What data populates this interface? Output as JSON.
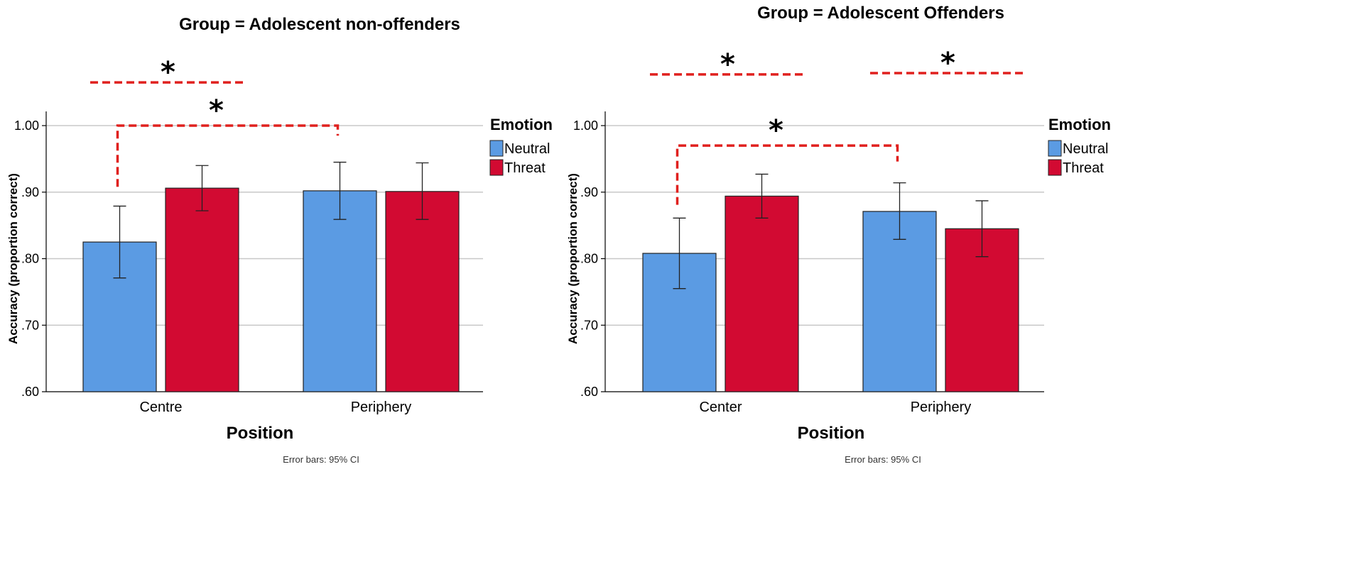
{
  "chart_data": [
    {
      "type": "bar",
      "title": "Group = Adolescent non-offenders",
      "xlabel": "Position",
      "ylabel": "Accuracy (proportion correct)",
      "ylim": [
        0.6,
        1.0
      ],
      "yticks": [
        0.6,
        0.7,
        0.8,
        0.9,
        1.0
      ],
      "ytick_labels": [
        ".60",
        ".70",
        ".80",
        ".90",
        "1.00"
      ],
      "categories": [
        "Centre",
        "Periphery"
      ],
      "series": [
        {
          "name": "Neutral",
          "color": "#5b9be3",
          "values": [
            0.825,
            0.902
          ],
          "ci_low": [
            0.771,
            0.859
          ],
          "ci_high": [
            0.879,
            0.945
          ]
        },
        {
          "name": "Threat",
          "color": "#d20a32",
          "values": [
            0.906,
            0.901
          ],
          "ci_low": [
            0.872,
            0.859
          ],
          "ci_high": [
            0.94,
            0.944
          ]
        }
      ],
      "legend_title": "Emotion",
      "note": "Error bars: 95% CI",
      "annotations": [
        {
          "label": "*",
          "kind": "line",
          "from": [
            0,
            0
          ],
          "to": [
            0,
            1
          ],
          "level": 1.065
        },
        {
          "label": "*",
          "kind": "bracket",
          "from": [
            0,
            0
          ],
          "to": [
            1,
            0
          ],
          "level": 1.0,
          "drop": [
            0.908,
            0.985
          ]
        }
      ]
    },
    {
      "type": "bar",
      "title": "Group = Adolescent Offenders",
      "xlabel": "Position",
      "ylabel": "Accuracy (proportion correct)",
      "ylim": [
        0.6,
        1.0
      ],
      "yticks": [
        0.6,
        0.7,
        0.8,
        0.9,
        1.0
      ],
      "ytick_labels": [
        ".60",
        ".70",
        ".80",
        ".90",
        "1.00"
      ],
      "categories": [
        "Center",
        "Periphery"
      ],
      "series": [
        {
          "name": "Neutral",
          "color": "#5b9be3",
          "values": [
            0.808,
            0.871
          ],
          "ci_low": [
            0.755,
            0.829
          ],
          "ci_high": [
            0.861,
            0.914
          ]
        },
        {
          "name": "Threat",
          "color": "#d20a32",
          "values": [
            0.894,
            0.845
          ],
          "ci_low": [
            0.861,
            0.803
          ],
          "ci_high": [
            0.927,
            0.887
          ]
        }
      ],
      "legend_title": "Emotion",
      "note": "Error bars: 95% CI",
      "annotations": [
        {
          "label": "*",
          "kind": "line",
          "from": [
            0,
            0
          ],
          "to": [
            0,
            1
          ],
          "level": 1.077
        },
        {
          "label": "*",
          "kind": "line",
          "from": [
            1,
            0
          ],
          "to": [
            1,
            1
          ],
          "level": 1.079
        },
        {
          "label": "*",
          "kind": "bracket",
          "from": [
            0,
            0
          ],
          "to": [
            1,
            0
          ],
          "level": 0.97,
          "drop": [
            0.881,
            0.946
          ]
        }
      ]
    }
  ]
}
